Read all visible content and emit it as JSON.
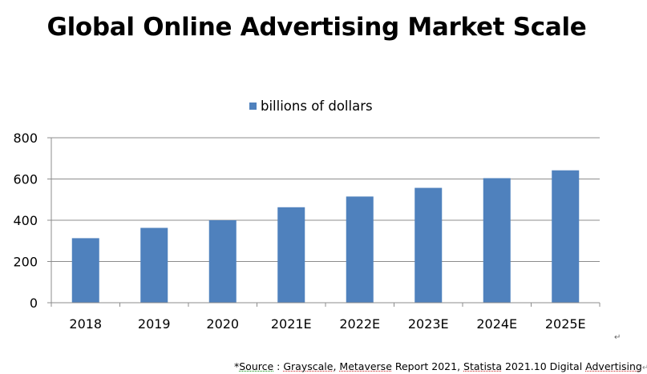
{
  "title": "Global Online Advertising Market Scale",
  "chart_data": {
    "type": "bar",
    "title": "Global Online Advertising Market Scale",
    "categories": [
      "2018",
      "2019",
      "2020",
      "2021E",
      "2022E",
      "2023E",
      "2024E",
      "2025E"
    ],
    "series": [
      {
        "name": "billions of dollars",
        "values": [
          313,
          363,
          400,
          463,
          515,
          557,
          604,
          642
        ]
      }
    ],
    "xlabel": "",
    "ylabel": "",
    "ylim": [
      0,
      800
    ],
    "yticks": [
      0,
      200,
      400,
      600,
      800
    ],
    "grid": true,
    "legend": "top-center",
    "bar_color": "#4F81BD"
  },
  "source": {
    "prefix": "*",
    "source_word": "Source",
    "sep": " : ",
    "grayscale": "Grayscale,",
    "sp1": " ",
    "metaverse": "Metaverse",
    "report": " Report 2021, ",
    "statista": "Statista",
    "rest": " 2021.10 Digital ",
    "advertising": "Advertising"
  },
  "paragraph_mark": "↵"
}
